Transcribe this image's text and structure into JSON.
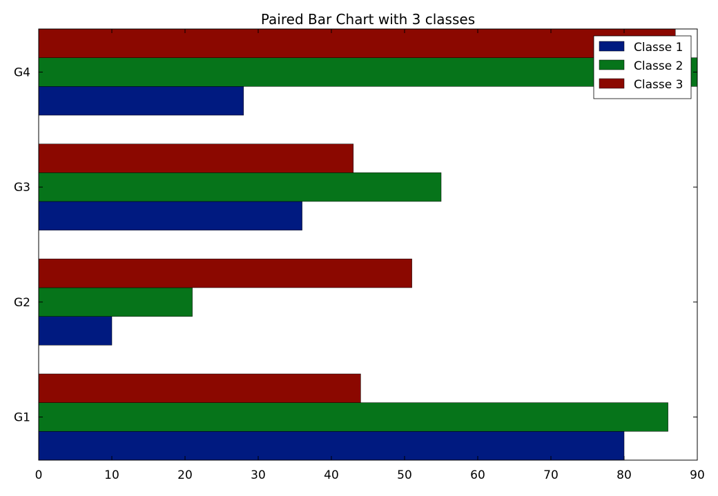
{
  "chart_data": {
    "type": "bar",
    "orientation": "horizontal",
    "title": "Paired Bar Chart with 3 classes",
    "xlabel": "",
    "ylabel": "",
    "categories": [
      "G1",
      "G2",
      "G3",
      "G4"
    ],
    "series": [
      {
        "name": "Classe 1",
        "values": [
          80,
          10,
          36,
          28
        ],
        "color": "#001a80"
      },
      {
        "name": "Classe 2",
        "values": [
          86,
          21,
          55,
          90
        ],
        "color": "#06741a"
      },
      {
        "name": "Classe 3",
        "values": [
          44,
          51,
          43,
          87
        ],
        "color": "#8b0800"
      }
    ],
    "xlim": [
      0,
      90
    ],
    "xticks": [
      0,
      10,
      20,
      30,
      40,
      50,
      60,
      70,
      80,
      90
    ],
    "grid": false,
    "legend_position": "top-right"
  }
}
